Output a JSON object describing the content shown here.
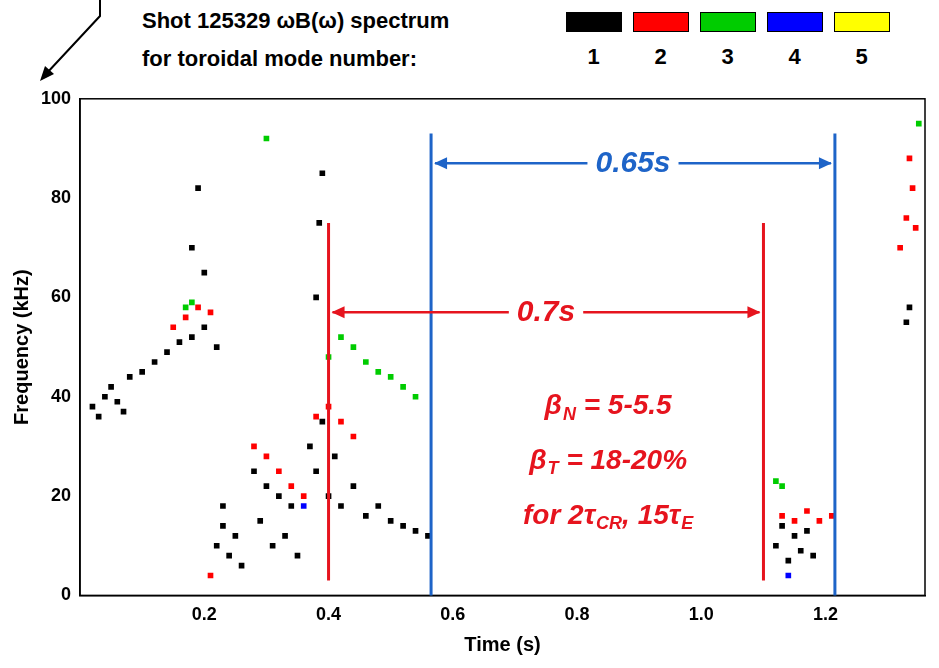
{
  "chart_data": {
    "type": "scatter",
    "title": "Shot 125329 ωB(ω) spectrum",
    "subtitle": "for toroidal mode number:",
    "x_label": "Time (s)",
    "y_label": "Frequency (kHz)",
    "xlim": [
      0,
      1.36
    ],
    "xticks": [
      0.2,
      0.4,
      0.6,
      0.8,
      {
        "value": 1,
        "label": "1.0"
      },
      1.2
    ],
    "ylim": [
      0,
      100
    ],
    "yticks": [
      0,
      20,
      40,
      60,
      80,
      100
    ],
    "grid": false,
    "legend": "top",
    "marker": "square",
    "series": [
      {
        "name": "1",
        "color": "#000000",
        "x": [
          0.02,
          0.03,
          0.04,
          0.05,
          0.06,
          0.07,
          0.08,
          0.1,
          0.12,
          0.14,
          0.16,
          0.18,
          0.2,
          0.22,
          0.18,
          0.19,
          0.2,
          0.22,
          0.23,
          0.24,
          0.25,
          0.26,
          0.23,
          0.28,
          0.29,
          0.3,
          0.31,
          0.32,
          0.33,
          0.34,
          0.35,
          0.38,
          0.385,
          0.39,
          0.37,
          0.38,
          0.39,
          0.4,
          0.41,
          0.42,
          0.44,
          0.46,
          0.48,
          0.5,
          0.52,
          0.54,
          0.56,
          1.12,
          1.13,
          1.14,
          1.15,
          1.16,
          1.17,
          1.18,
          1.33,
          1.335
        ],
        "values": [
          38,
          36,
          40,
          42,
          39,
          37,
          44,
          45,
          47,
          49,
          51,
          52,
          54,
          50,
          70,
          82,
          65,
          10,
          14,
          8,
          12,
          6,
          18,
          25,
          15,
          22,
          10,
          20,
          12,
          18,
          8,
          60,
          75,
          85,
          30,
          25,
          35,
          20,
          28,
          18,
          22,
          16,
          18,
          15,
          14,
          13,
          12,
          10,
          14,
          7,
          12,
          9,
          13,
          8,
          55,
          58
        ]
      },
      {
        "name": "2",
        "color": "#ff0000",
        "x": [
          0.15,
          0.17,
          0.19,
          0.21,
          0.21,
          0.28,
          0.3,
          0.32,
          0.34,
          0.36,
          0.38,
          0.4,
          0.42,
          0.44,
          1.13,
          1.15,
          1.17,
          1.19,
          1.21,
          1.32,
          1.33,
          1.34,
          1.345,
          1.335
        ],
        "values": [
          54,
          56,
          58,
          57,
          4,
          30,
          28,
          25,
          22,
          20,
          36,
          38,
          35,
          32,
          16,
          15,
          17,
          15,
          16,
          70,
          76,
          82,
          74,
          88
        ]
      },
      {
        "name": "3",
        "color": "#00cc00",
        "x": [
          0.17,
          0.18,
          0.3,
          0.4,
          0.42,
          0.44,
          0.46,
          0.48,
          0.5,
          0.52,
          0.54,
          1.12,
          1.13,
          1.35
        ],
        "values": [
          58,
          59,
          92,
          48,
          52,
          50,
          47,
          45,
          44,
          42,
          40,
          23,
          22,
          95
        ]
      },
      {
        "name": "4",
        "color": "#0000ff",
        "x": [
          0.36,
          1.14
        ],
        "values": [
          18,
          4
        ]
      },
      {
        "name": "5",
        "color": "#ffff00",
        "x": [],
        "values": []
      }
    ],
    "intervals": [
      {
        "label": "0.65s",
        "color": "#1e64c8",
        "x_start": 0.565,
        "x_end": 1.215,
        "y": 87,
        "y_span": [
          0,
          93
        ]
      },
      {
        "label": "0.7s",
        "color": "#e6141e",
        "x_start": 0.4,
        "x_end": 1.1,
        "y": 57,
        "y_span": [
          3,
          75
        ]
      }
    ],
    "note": {
      "color": "#e6141e",
      "x": 0.85,
      "y": [
        38,
        27,
        16
      ],
      "lines": [
        [
          {
            "text": "β",
            "sub": "N"
          },
          {
            "text": " = 5-5.5"
          }
        ],
        [
          {
            "text": "β",
            "sub": "T"
          },
          {
            "text": " = 18-20%"
          }
        ],
        [
          {
            "text": "for 2τ",
            "sub": "CR"
          },
          {
            "text": ", 15τ",
            "sub": "E"
          }
        ]
      ]
    }
  }
}
